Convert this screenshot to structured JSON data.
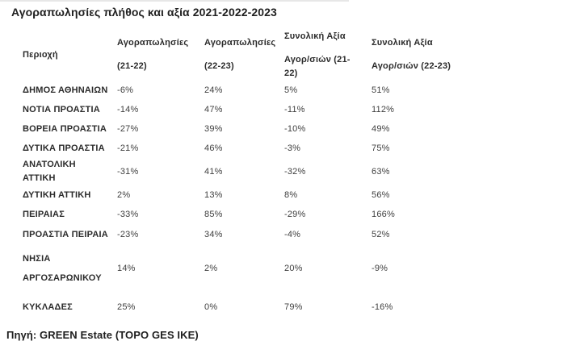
{
  "page": {
    "title": "Αγοραπωλησίες πλήθος και αξία 2021-2022-2023",
    "source": "Πηγή: GREEN Estate (TOPO GES IKE)"
  },
  "colors": {
    "background": "#ffffff",
    "heading_text": "#1f1f1f",
    "bold_cell_text": "#2b2b2b",
    "value_text": "#3f3f3f"
  },
  "table": {
    "columns": [
      {
        "line1": "Περιοχή",
        "line2": ""
      },
      {
        "line1": "Αγοραπωλησίες",
        "line2": "(21-22)"
      },
      {
        "line1": "Αγοραπωλησίες",
        "line2": "(22-23)"
      },
      {
        "line1": "Συνολική Αξία",
        "line2": "Αγορ/σιών (21-22)"
      },
      {
        "line1": "Συνολική Αξία",
        "line2": "Αγορ/σιών (22-23)"
      }
    ],
    "rows": [
      {
        "region": "ΔΗΜΟΣ ΑΘΗΝΑΙΩΝ",
        "values": [
          "-6%",
          "24%",
          "5%",
          "51%"
        ]
      },
      {
        "region": "ΝΟΤΙΑ ΠΡΟΑΣΤΙΑ",
        "values": [
          "-14%",
          "47%",
          "-11%",
          "112%"
        ]
      },
      {
        "region": "ΒΟΡΕΙΑ ΠΡΟΑΣΤΙΑ",
        "values": [
          "-27%",
          "39%",
          "-10%",
          "49%"
        ]
      },
      {
        "region": "ΔΥΤΙΚΑ ΠΡΟΑΣΤΙΑ",
        "values": [
          "-21%",
          "46%",
          "-3%",
          "75%"
        ]
      },
      {
        "region": "ΑΝΑΤΟΛΙΚΗ ΑΤΤΙΚΗ",
        "values": [
          "-31%",
          "41%",
          "-32%",
          "63%"
        ]
      },
      {
        "region": "ΔΥΤΙΚΗ ΑΤΤΙΚΗ",
        "values": [
          "2%",
          "13%",
          "8%",
          "56%"
        ]
      },
      {
        "region": "ΠΕΙΡΑΙΑΣ",
        "values": [
          "-33%",
          "85%",
          "-29%",
          "166%"
        ]
      },
      {
        "region": "ΠΡΟΑΣΤΙΑ ΠΕΙΡΑΙΑ",
        "values": [
          "-23%",
          "34%",
          "-4%",
          "52%"
        ]
      },
      {
        "region": "ΝΗΣΙΑ ΑΡΓΟΣΑΡΩΝΙΚΟΥ",
        "values": [
          "14%",
          "2%",
          "20%",
          "-9%"
        ]
      },
      {
        "region": "ΚΥΚΛΑΔΕΣ",
        "values": [
          "25%",
          "0%",
          "79%",
          "-16%"
        ]
      }
    ]
  }
}
